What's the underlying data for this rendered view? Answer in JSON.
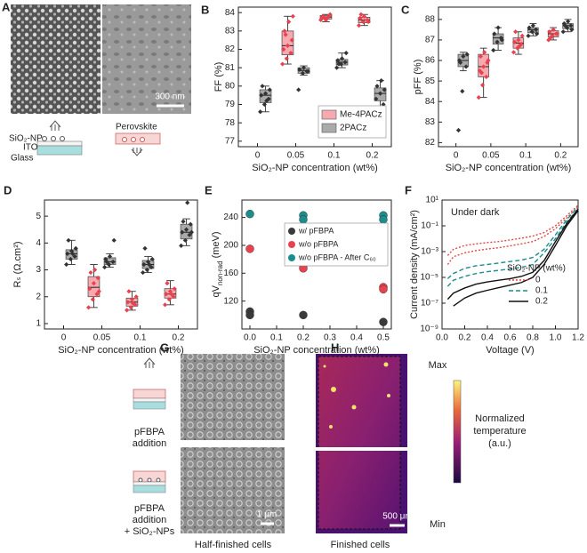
{
  "figure": {
    "A": {
      "letter": "A",
      "scale_bar": "300 nm",
      "layers": [
        "SiO₂-NP",
        "ITO",
        "Glass"
      ],
      "perovskite": "Perovskite"
    },
    "G": {
      "letter": "G",
      "top_label": [
        "pFBPA",
        "addition"
      ],
      "bottom_label": [
        "pFBPA",
        "addition",
        "+ SiO₂-NPs"
      ],
      "scale_bar": "1 μm",
      "caption": "Half-finished cells"
    },
    "H": {
      "letter": "H",
      "scale_bar": "500 μm",
      "caption": "Finished cells",
      "colorbar_max": "Max",
      "colorbar_min": "Min",
      "colorbar_label": [
        "Normalized",
        "temperature",
        "(a.u.)"
      ]
    }
  },
  "chart_data": [
    {
      "type": "box",
      "panel": "B",
      "ylabel": "FF (%)",
      "xlabel": "SiO₂-NP concentration (wt%)",
      "categories": [
        "0",
        "0.05",
        "0.1",
        "0.2"
      ],
      "ylim": [
        76.7,
        84.3
      ],
      "yticks": [
        77,
        78,
        79,
        80,
        81,
        82,
        83,
        84
      ],
      "legend": "lower right",
      "series": [
        {
          "name": "Me-4PACz",
          "color": "#e8424f",
          "box_color": "#f6a9ae",
          "groups": [
            null,
            {
              "points": [
                81.2,
                81.5,
                81.8,
                82.0,
                82.2,
                82.5,
                83.0,
                83.5,
                83.8,
                82.8
              ],
              "box": [
                81.7,
                82.2,
                83.0
              ],
              "whisker": [
                81.2,
                83.8
              ]
            },
            {
              "points": [
                83.6,
                83.7,
                83.8,
                83.7,
                83.6,
                83.9,
                83.8,
                83.7
              ],
              "box": [
                83.65,
                83.75,
                83.85
              ],
              "whisker": [
                83.5,
                83.9
              ]
            },
            {
              "points": [
                83.3,
                83.5,
                83.6,
                83.7,
                83.8,
                83.5,
                83.9
              ],
              "box": [
                83.45,
                83.6,
                83.75
              ],
              "whisker": [
                83.3,
                83.9
              ]
            }
          ]
        },
        {
          "name": "2PACz",
          "color": "#333333",
          "box_color": "#aaaaaa",
          "groups": [
            {
              "points": [
                78.6,
                79.0,
                79.3,
                79.5,
                79.6,
                79.8,
                80.0,
                79.2
              ],
              "box": [
                79.1,
                79.5,
                79.8
              ],
              "whisker": [
                78.6,
                80.0
              ]
            },
            {
              "points": [
                79.8,
                80.7,
                80.8,
                80.9,
                81.0,
                80.8
              ],
              "box": [
                80.7,
                80.85,
                81.0
              ],
              "whisker": [
                80.6,
                81.1
              ]
            },
            {
              "points": [
                81.0,
                81.2,
                81.3,
                81.4,
                81.5,
                81.8,
                81.2
              ],
              "box": [
                81.15,
                81.3,
                81.45
              ],
              "whisker": [
                81.0,
                81.8
              ]
            },
            {
              "points": [
                77.6,
                78.5,
                79.0,
                79.3,
                79.6,
                79.8,
                80.0,
                80.3
              ],
              "box": [
                79.2,
                79.6,
                79.9
              ],
              "whisker": [
                78.8,
                80.3
              ]
            }
          ]
        }
      ]
    },
    {
      "type": "box",
      "panel": "C",
      "ylabel": "pFF (%)",
      "xlabel": "SiO₂-NP concentration (wt%)",
      "categories": [
        "0",
        "0.05",
        "0.1",
        "0.2"
      ],
      "ylim": [
        81.8,
        88.6
      ],
      "yticks": [
        82,
        83,
        84,
        85,
        86,
        87,
        88
      ],
      "series": [
        {
          "color": "#e8424f",
          "box_color": "#f6a9ae",
          "groups": [
            null,
            {
              "points": [
                84.2,
                84.8,
                85.2,
                85.5,
                85.7,
                85.9,
                86.2,
                86.4,
                86.0,
                85.4
              ],
              "box": [
                85.2,
                85.7,
                86.3
              ],
              "whisker": [
                84.2,
                86.6
              ]
            },
            {
              "points": [
                86.4,
                86.6,
                86.8,
                86.9,
                87.0,
                87.2,
                87.4,
                86.7
              ],
              "box": [
                86.6,
                86.85,
                87.1
              ],
              "whisker": [
                86.3,
                87.4
              ]
            },
            {
              "points": [
                87.0,
                87.2,
                87.3,
                87.4,
                87.5,
                87.3,
                87.1
              ],
              "box": [
                87.15,
                87.3,
                87.45
              ],
              "whisker": [
                87.0,
                87.6
              ]
            }
          ]
        },
        {
          "color": "#333333",
          "box_color": "#aaaaaa",
          "groups": [
            {
              "points": [
                82.6,
                84.5,
                85.7,
                86.0,
                86.2,
                86.3,
                85.9
              ],
              "box": [
                85.7,
                86.0,
                86.3
              ],
              "whisker": [
                85.5,
                86.4
              ]
            },
            {
              "points": [
                86.5,
                86.9,
                87.1,
                87.3,
                87.6,
                87.0
              ],
              "box": [
                86.8,
                87.1,
                87.3
              ],
              "whisker": [
                86.5,
                87.6
              ]
            },
            {
              "points": [
                87.2,
                87.4,
                87.5,
                87.6,
                87.7,
                87.3
              ],
              "box": [
                87.35,
                87.5,
                87.6
              ],
              "whisker": [
                87.2,
                87.8
              ]
            },
            {
              "points": [
                87.4,
                87.6,
                87.7,
                87.8,
                87.9,
                87.5,
                87.7
              ],
              "box": [
                87.55,
                87.7,
                87.8
              ],
              "whisker": [
                87.4,
                88.0
              ]
            }
          ]
        }
      ]
    },
    {
      "type": "box",
      "panel": "D",
      "ylabel": "Rₛ (Ω.cm²)",
      "xlabel": "SiO₂-NP concentration (wt%)",
      "categories": [
        "0",
        "0.05",
        "0.1",
        "0.2"
      ],
      "ylim": [
        0.8,
        5.6
      ],
      "yticks": [
        1,
        2,
        3,
        4,
        5
      ],
      "series": [
        {
          "color": "#e8424f",
          "box_color": "#f6a9ae",
          "groups": [
            null,
            {
              "points": [
                1.6,
                1.9,
                2.1,
                2.3,
                2.5,
                2.7,
                2.9,
                3.0,
                2.2
              ],
              "box": [
                2.0,
                2.35,
                2.75
              ],
              "whisker": [
                1.6,
                3.2
              ]
            },
            {
              "points": [
                1.5,
                1.6,
                1.7,
                1.8,
                1.9,
                2.0,
                2.2,
                1.75
              ],
              "box": [
                1.65,
                1.8,
                1.95
              ],
              "whisker": [
                1.5,
                2.2
              ]
            },
            {
              "points": [
                1.7,
                1.9,
                2.0,
                2.1,
                2.2,
                2.3,
                2.5,
                2.1
              ],
              "box": [
                1.95,
                2.1,
                2.3
              ],
              "whisker": [
                1.7,
                2.6
              ]
            }
          ]
        },
        {
          "color": "#333333",
          "box_color": "#aaaaaa",
          "groups": [
            {
              "points": [
                3.2,
                3.4,
                3.5,
                3.6,
                3.7,
                3.8,
                4.1,
                3.6
              ],
              "box": [
                3.4,
                3.6,
                3.75
              ],
              "whisker": [
                3.2,
                4.1
              ]
            },
            {
              "points": [
                3.1,
                3.2,
                3.3,
                3.4,
                3.5,
                4.1,
                3.3
              ],
              "box": [
                3.2,
                3.3,
                3.45
              ],
              "whisker": [
                3.1,
                3.6
              ]
            },
            {
              "points": [
                2.9,
                3.0,
                3.1,
                3.2,
                3.3,
                3.4,
                3.8,
                3.2
              ],
              "box": [
                3.05,
                3.2,
                3.35
              ],
              "whisker": [
                2.9,
                3.5
              ]
            },
            {
              "points": [
                3.9,
                4.1,
                4.3,
                4.4,
                4.5,
                4.7,
                4.8,
                5.5,
                4.4
              ],
              "box": [
                4.15,
                4.4,
                4.7
              ],
              "whisker": [
                3.9,
                4.9
              ]
            }
          ]
        }
      ]
    },
    {
      "type": "scatter",
      "panel": "E",
      "ylabel": {
        "main": "qV",
        "sub": "non-rad",
        "unit": " (meV)"
      },
      "xlabel": "SiO₂-NP concentration (wt%)",
      "xlim": [
        -0.03,
        0.53
      ],
      "xticks": [
        {
          "value": 0,
          "label": "0.0"
        },
        0.1,
        0.2,
        0.3,
        0.4,
        0.5
      ],
      "ylim": [
        80,
        265
      ],
      "yticks": [
        120,
        160,
        200,
        240
      ],
      "legend": "upper right",
      "series": [
        {
          "name": "w/ pFBPA",
          "color": "#3a3a3a",
          "x": [
            0,
            0,
            0.2,
            0.5
          ],
          "y": [
            105,
            100,
            100,
            90
          ]
        },
        {
          "name": "w/o pFBPA",
          "color": "#e8424f",
          "x": [
            0,
            0.2,
            0.2,
            0.5,
            0.5
          ],
          "y": [
            195,
            172,
            167,
            140,
            137
          ]
        },
        {
          "name": "w/o pFBPA - After C₆₀",
          "color": "#1d8c8c",
          "x": [
            0,
            0.2,
            0.2,
            0.5,
            0.5
          ],
          "y": [
            245,
            243,
            237,
            243,
            237
          ]
        }
      ]
    },
    {
      "type": "line",
      "panel": "F",
      "ylabel": "Current density (mA/cm²)",
      "xlabel": "Voltage (V)",
      "annotation": "Under dark",
      "log_y": true,
      "xlim": [
        0,
        1.2
      ],
      "xticks": [
        {
          "value": 0,
          "label": "0.0"
        },
        0.2,
        0.4,
        0.6,
        0.8,
        {
          "value": 1,
          "label": "1.0"
        },
        1.2
      ],
      "ylim": [
        1e-09,
        10
      ],
      "yticks": [
        {
          "value": 1e-09,
          "label": "10⁻⁹"
        },
        {
          "value": 1e-07,
          "label": "10⁻⁷"
        },
        {
          "value": 1e-05,
          "label": "10⁻⁵"
        },
        {
          "value": 0.001,
          "label": "10⁻³"
        },
        {
          "value": 0.1,
          "label": "10⁻¹"
        },
        {
          "value": 10,
          "label": "10¹"
        }
      ],
      "legend": "lower right",
      "legend_title": "SiO₂-NP (wt%)",
      "x": [
        0.05,
        0.1,
        0.2,
        0.3,
        0.4,
        0.5,
        0.6,
        0.7,
        0.8,
        0.9,
        1.0,
        1.1,
        1.2
      ],
      "series": [
        {
          "name": "0",
          "color": "#e04848",
          "dash": "dotted",
          "curves": [
            [
              0.0005,
              0.0015,
              0.003,
              0.004,
              0.005,
              0.006,
              0.008,
              0.011,
              0.016,
              0.03,
              0.1,
              0.6,
              4
            ],
            [
              0.0001,
              0.0004,
              0.0008,
              0.0012,
              0.0016,
              0.002,
              0.0028,
              0.004,
              0.006,
              0.015,
              0.06,
              0.4,
              3
            ]
          ]
        },
        {
          "name": "0.1",
          "color": "#1d8c8c",
          "dash": "dashed",
          "curves": [
            [
              8e-06,
              2e-05,
              5e-05,
              8e-05,
              0.0001,
              0.00013,
              0.00017,
              0.00022,
              0.00035,
              0.0015,
              0.02,
              0.3,
              3
            ],
            [
              2e-06,
              6e-06,
              1.2e-05,
              2e-05,
              2.8e-05,
              3.5e-05,
              4.5e-05,
              6e-05,
              0.0001,
              0.0008,
              0.01,
              0.2,
              2
            ]
          ]
        },
        {
          "name": "0.2",
          "color": "#111111",
          "dash": "solid",
          "curves": [
            [
              2e-07,
              6e-07,
              1.5e-06,
              3e-06,
              4.5e-06,
              6e-06,
              8e-06,
              1.2e-05,
              2.5e-05,
              0.0002,
              0.006,
              0.15,
              2
            ],
            [
              null,
              6e-08,
              2.5e-07,
              6e-07,
              1e-06,
              1.6e-06,
              2.5e-06,
              4e-06,
              1e-05,
              0.0001,
              0.003,
              0.1,
              1.5
            ]
          ]
        }
      ]
    }
  ]
}
